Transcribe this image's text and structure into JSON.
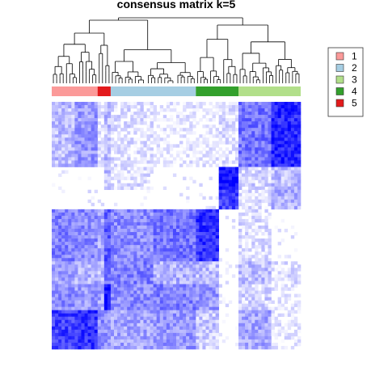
{
  "chart_data": {
    "type": "heatmap",
    "title": "consensus matrix k=5",
    "value_range": [
      0,
      1
    ],
    "low_color": "#FFFFFF",
    "high_color": "#0000FF",
    "legend_position": "right",
    "legend": [
      {
        "label": "1",
        "color": "#FB9A99"
      },
      {
        "label": "2",
        "color": "#A6CEE3"
      },
      {
        "label": "3",
        "color": "#B2DF8A"
      },
      {
        "label": "4",
        "color": "#33A02C"
      },
      {
        "label": "5",
        "color": "#E31A1C"
      }
    ],
    "column_groups": [
      {
        "cluster": "1",
        "size": 14
      },
      {
        "cluster": "5",
        "size": 4
      },
      {
        "cluster": "2",
        "size": 26
      },
      {
        "cluster": "4",
        "size": 13
      },
      {
        "cluster": "3",
        "size": 19
      }
    ],
    "row_blocks": [
      {
        "rows": 20,
        "values": [
          0.25,
          0.4,
          0.08,
          0.25,
          0.1,
          0.05,
          0.05,
          0.1,
          0.55,
          0.85
        ]
      },
      {
        "rows": 7,
        "values": [
          0.02,
          0.02,
          0.02,
          0.25,
          0.1,
          0.02,
          0.02,
          0.95,
          0.15,
          0.25
        ]
      },
      {
        "rows": 6,
        "values": [
          0.02,
          0.02,
          0.02,
          0.02,
          0.02,
          0.02,
          0.02,
          0.75,
          0.1,
          0.3
        ]
      },
      {
        "rows": 16,
        "values": [
          0.5,
          0.45,
          0.35,
          0.65,
          0.45,
          0.55,
          0.8,
          0.02,
          0.1,
          0.02
        ]
      },
      {
        "rows": 7,
        "values": [
          0.35,
          0.3,
          0.25,
          0.55,
          0.5,
          0.3,
          0.25,
          0.02,
          0.25,
          0.1
        ]
      },
      {
        "rows": 8,
        "values": [
          0.45,
          0.4,
          0.35,
          0.95,
          0.45,
          0.5,
          0.4,
          0.02,
          0.15,
          0.05
        ]
      },
      {
        "rows": 12,
        "values": [
          0.75,
          0.8,
          0.45,
          0.4,
          0.35,
          0.4,
          0.2,
          0.02,
          0.35,
          0.05
        ]
      }
    ]
  }
}
